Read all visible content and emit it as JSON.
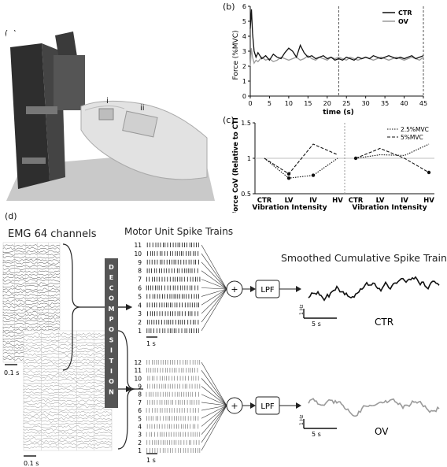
{
  "panels": {
    "a": {
      "label": "(a)",
      "markers": [
        "i",
        "ii"
      ]
    },
    "b": {
      "label": "(b)"
    },
    "c": {
      "label": "(c)"
    },
    "d": {
      "label": "(d)",
      "emg_title": "EMG 64 channels",
      "mu_title": "Motor Unit Spike Trains",
      "smooth_title": "Smoothed Cumulative Spike Trains",
      "decomposition": "DECOMPOSITION",
      "sum_symbol": "+",
      "lpf": "LPF",
      "emg_scale": "0.1 s",
      "mu_scale": "1 s",
      "smooth_x_scale": "5 s",
      "smooth_y_scale": "1 Hz",
      "ctr_label": "CTR",
      "ov_label": "OV",
      "ctr_units": [
        "11",
        "10",
        "9",
        "8",
        "7",
        "6",
        "5",
        "4",
        "3",
        "2",
        "1"
      ],
      "ov_units": [
        "12",
        "11",
        "10",
        "9",
        "8",
        "7",
        "6",
        "5",
        "4",
        "3",
        "2",
        "1"
      ]
    }
  },
  "chart_data": [
    {
      "id": "force-trace",
      "type": "line",
      "xlabel": "time (s)",
      "ylabel": "Force (%MVC)",
      "xlim": [
        0,
        45
      ],
      "ylim": [
        0,
        6
      ],
      "x_ticks": [
        "0",
        "5",
        "10",
        "15",
        "20",
        "25",
        "30",
        "35",
        "40",
        "45"
      ],
      "y_ticks": [
        "0",
        "1",
        "2",
        "3",
        "4",
        "5",
        "6"
      ],
      "vlines": [
        23,
        45
      ],
      "legend_position": "top-right",
      "series": [
        {
          "name": "CTR",
          "color": "#111111",
          "x": [
            0,
            0.3,
            0.6,
            1,
            1.5,
            2,
            3,
            4,
            5,
            6,
            7,
            8,
            9,
            10,
            11,
            12,
            13,
            14,
            15,
            16,
            17,
            18,
            19,
            20,
            21,
            22,
            23,
            24,
            25,
            26,
            27,
            28,
            29,
            30,
            31,
            32,
            33,
            34,
            35,
            36,
            37,
            38,
            39,
            40,
            41,
            42,
            43,
            44,
            45
          ],
          "y": [
            4.5,
            5.8,
            4.2,
            3.0,
            2.6,
            2.9,
            2.5,
            2.7,
            2.4,
            2.8,
            2.6,
            2.5,
            2.9,
            3.2,
            3.0,
            2.6,
            3.4,
            2.9,
            2.6,
            2.7,
            2.5,
            2.6,
            2.7,
            2.5,
            2.6,
            2.4,
            2.5,
            2.4,
            2.6,
            2.5,
            2.4,
            2.6,
            2.5,
            2.6,
            2.5,
            2.7,
            2.6,
            2.5,
            2.6,
            2.7,
            2.6,
            2.5,
            2.6,
            2.5,
            2.6,
            2.7,
            2.5,
            2.6,
            2.7
          ]
        },
        {
          "name": "OV",
          "color": "#9a9a9a",
          "x": [
            0,
            0.3,
            0.6,
            1,
            1.5,
            2,
            3,
            4,
            5,
            6,
            7,
            8,
            9,
            10,
            11,
            12,
            13,
            14,
            15,
            16,
            17,
            18,
            19,
            20,
            21,
            22,
            23,
            24,
            25,
            26,
            27,
            28,
            29,
            30,
            31,
            32,
            33,
            34,
            35,
            36,
            37,
            38,
            39,
            40,
            41,
            42,
            43,
            44,
            45
          ],
          "y": [
            2.0,
            3.2,
            2.6,
            2.2,
            2.4,
            2.3,
            2.6,
            2.4,
            2.5,
            2.3,
            2.4,
            2.6,
            2.5,
            2.4,
            2.5,
            2.6,
            2.4,
            2.5,
            2.7,
            2.5,
            2.4,
            2.6,
            2.5,
            2.4,
            2.6,
            2.5,
            2.6,
            2.5,
            2.4,
            2.6,
            2.5,
            2.4,
            2.5,
            2.6,
            2.5,
            2.4,
            2.5,
            2.6,
            2.5,
            2.4,
            2.5,
            2.6,
            2.5,
            2.4,
            2.5,
            2.6,
            2.5,
            2.4,
            2.6
          ]
        }
      ]
    },
    {
      "id": "force-cov",
      "type": "line",
      "ylabel": "Force CoV (Relative to CTR)",
      "categories": [
        "CTR",
        "LV",
        "IV",
        "HV"
      ],
      "subplots": [
        {
          "xlabel": "Vibration Intensity",
          "series": [
            {
              "name": "2.5%MVC",
              "style": "dotted",
              "values": [
                1.0,
                0.72,
                0.76,
                1.0
              ]
            },
            {
              "name": "5%MVC",
              "style": "dashed",
              "values": [
                1.0,
                0.78,
                1.2,
                1.05
              ]
            }
          ]
        },
        {
          "xlabel": "Vibration Intensity",
          "series": [
            {
              "name": "2.5%MVC",
              "style": "dotted",
              "values": [
                1.0,
                1.05,
                1.04,
                1.2
              ]
            },
            {
              "name": "5%MVC",
              "style": "dashed",
              "values": [
                1.0,
                1.14,
                1.0,
                0.8
              ]
            }
          ]
        }
      ],
      "y_ticks": [
        "0.5",
        "1",
        "1.5"
      ],
      "ylim": [
        0.5,
        1.5
      ],
      "legend_position": "top-right"
    }
  ]
}
